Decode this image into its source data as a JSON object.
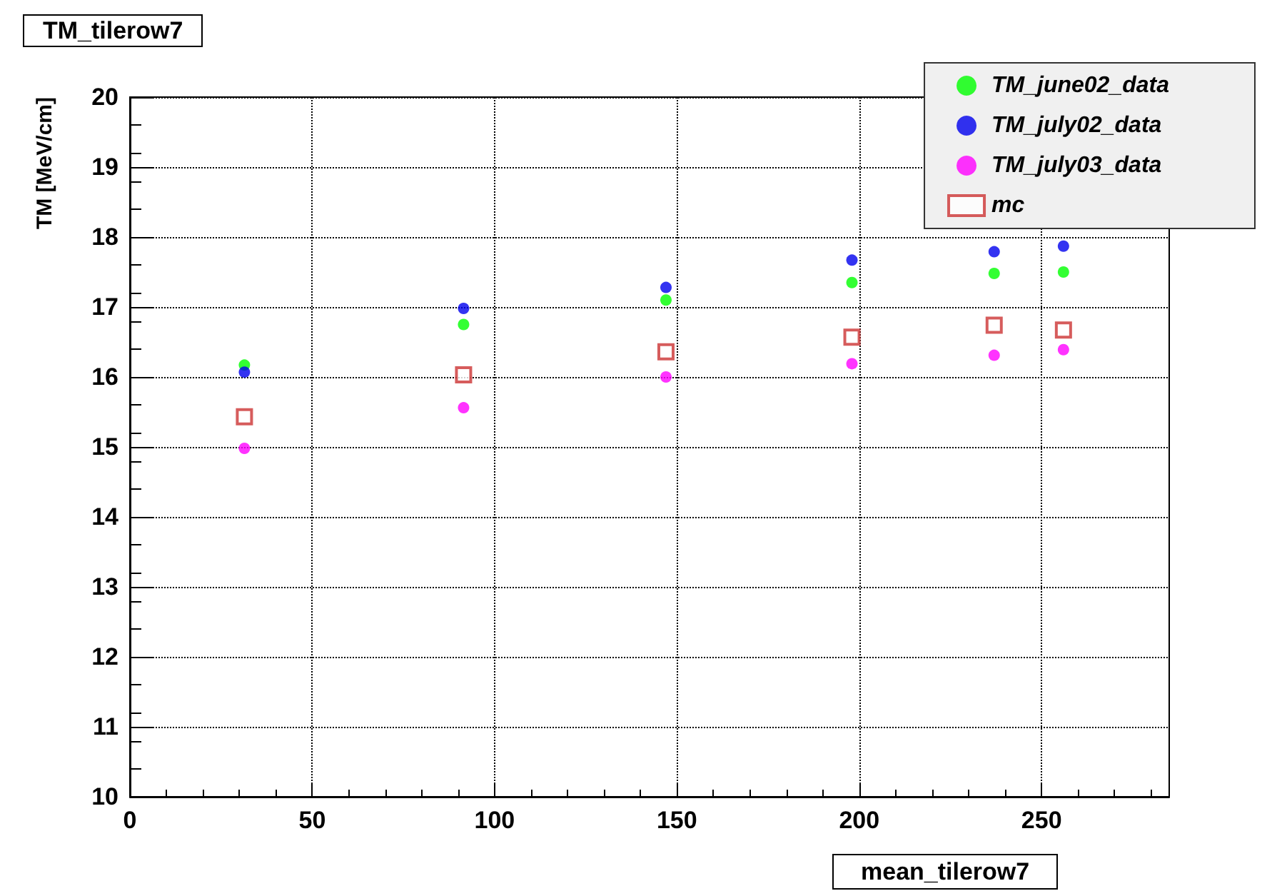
{
  "chart_data": {
    "type": "scatter",
    "title": "TM_tilerow7",
    "xlabel": "mean_tilerow7",
    "ylabel": "TM [MeV/cm]",
    "x": [
      31.4,
      91.5,
      147,
      198,
      237,
      256
    ],
    "series": [
      {
        "name": "TM_june02_data",
        "color": "#00ff00",
        "marker": "circle",
        "values": [
          16.17,
          16.75,
          17.1,
          17.35,
          17.48,
          17.5
        ]
      },
      {
        "name": "TM_july02_data",
        "color": "#0000ee",
        "marker": "circle",
        "values": [
          16.07,
          16.98,
          17.28,
          17.67,
          17.79,
          17.87
        ]
      },
      {
        "name": "TM_july03_data",
        "color": "#ff00ff",
        "marker": "circle",
        "values": [
          14.98,
          15.56,
          16.0,
          16.19,
          16.31,
          16.39
        ]
      },
      {
        "name": "mc",
        "color": "#cc3333",
        "marker": "square",
        "values": [
          15.43,
          16.03,
          16.36,
          16.57,
          16.74,
          16.67
        ]
      }
    ],
    "xlim": [
      0,
      285
    ],
    "xticks": [
      0,
      50,
      100,
      150,
      200,
      250
    ],
    "ylim": [
      10,
      20
    ],
    "yticks": [
      10,
      11,
      12,
      13,
      14,
      15,
      16,
      17,
      18,
      19,
      20
    ],
    "grid": true,
    "legend": "top right"
  }
}
